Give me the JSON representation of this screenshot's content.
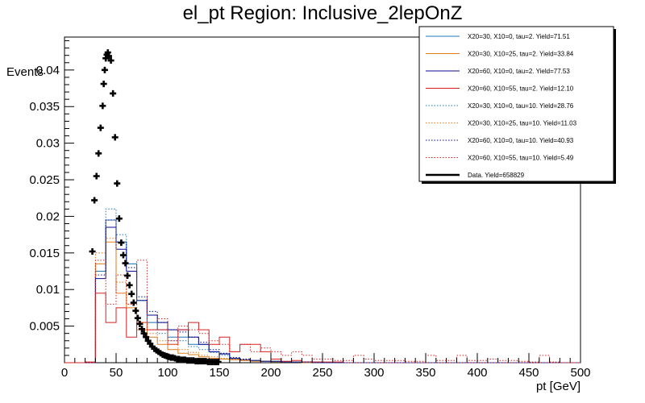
{
  "chart_data": {
    "type": "line",
    "title": "el_pt Region: Inclusive_2lepOnZ",
    "xlabel": "pt [GeV]",
    "ylabel": "Events",
    "xlim": [
      0,
      500
    ],
    "ylim": [
      0,
      0.0445
    ],
    "grid": false,
    "legend_position": "top-right",
    "x_ticks": [
      "0",
      "50",
      "100",
      "150",
      "200",
      "250",
      "300",
      "350",
      "400",
      "450",
      "500"
    ],
    "y_ticks": [
      "0.005",
      "0.01",
      "0.015",
      "0.02",
      "0.025",
      "0.03",
      "0.035",
      "0.04"
    ],
    "x_tick_values": [
      0,
      50,
      100,
      150,
      200,
      250,
      300,
      350,
      400,
      450,
      500
    ],
    "y_tick_values": [
      0.005,
      0.01,
      0.015,
      0.02,
      0.025,
      0.03,
      0.035,
      0.04
    ],
    "bin_edges": [
      0,
      10,
      20,
      30,
      40,
      50,
      60,
      70,
      80,
      90,
      100,
      110,
      120,
      130,
      140,
      150,
      160,
      170,
      180,
      190,
      200,
      210,
      220,
      230,
      240,
      250,
      260,
      270,
      280,
      290,
      300,
      310,
      320,
      330,
      340,
      350,
      360,
      370,
      380,
      390,
      400,
      410,
      420,
      430,
      440,
      450,
      460,
      470,
      480,
      490,
      500
    ],
    "series": [
      {
        "name": "X20=30, X10=0, tau=2. Yield=71.51",
        "color": "#1f77b4",
        "dash": "solid",
        "values": [
          0,
          0,
          0,
          0.0125,
          0.0195,
          0.0165,
          0.0135,
          0.0085,
          0.0055,
          0.0045,
          0.0035,
          0.0035,
          0.0025,
          0.0025,
          0.0015,
          0.0012,
          0.0006,
          0.0004,
          0.0003,
          0.0002,
          0.0002,
          0.0001,
          0.0001,
          0.0001,
          0.0001,
          0,
          0,
          0,
          0,
          0,
          0,
          0,
          0,
          0,
          0,
          0,
          0,
          0,
          0,
          0,
          0,
          0,
          0,
          0,
          0,
          0,
          0,
          0,
          0,
          0
        ]
      },
      {
        "name": "X20=30, X10=25, tau=2. Yield=33.84",
        "color": "#e07b1a",
        "dash": "solid",
        "values": [
          0,
          0,
          0,
          0.0135,
          0.0165,
          0.0095,
          0.0075,
          0.0045,
          0.0035,
          0.0025,
          0.0018,
          0.0013,
          0.0011,
          0.0008,
          0.0006,
          0.0005,
          0.0004,
          0.0003,
          0.0002,
          0.0002,
          0.0001,
          0.0001,
          0.0001,
          0,
          0,
          0,
          0,
          0,
          0,
          0,
          0,
          0,
          0,
          0,
          0,
          0,
          0,
          0,
          0,
          0,
          0,
          0,
          0,
          0,
          0,
          0,
          0,
          0,
          0,
          0
        ]
      },
      {
        "name": "X20=60, X10=0, tau=2. Yield=77.53",
        "color": "#0a0a8c",
        "dash": "solid",
        "values": [
          0,
          0,
          0,
          0.0115,
          0.0185,
          0.0155,
          0.0125,
          0.0085,
          0.0065,
          0.0055,
          0.0045,
          0.0045,
          0.0035,
          0.0025,
          0.0015,
          0.0012,
          0.0006,
          0.0004,
          0.0003,
          0.0002,
          0.0002,
          0.0001,
          0.0001,
          0.0001,
          0,
          0,
          0,
          0,
          0,
          0,
          0,
          0,
          0,
          0,
          0,
          0,
          0,
          0,
          0,
          0,
          0,
          0,
          0,
          0,
          0,
          0,
          0,
          0,
          0,
          0
        ]
      },
      {
        "name": "X20=60, X10=55, tau=2. Yield=12.10",
        "color": "#d62020",
        "dash": "solid",
        "values": [
          0,
          0,
          0.0001,
          0.0095,
          0.0055,
          0.0075,
          0.0035,
          0.0055,
          0.0045,
          0.0045,
          0.0025,
          0.0045,
          0.0055,
          0.0045,
          0.0025,
          0.0035,
          0.0015,
          0.0025,
          0.0025,
          0.0015,
          0.0005,
          0.0002,
          0.0003,
          0.0001,
          0.0001,
          0.0001,
          0.0001,
          0,
          0,
          0,
          0,
          0,
          0,
          0,
          0,
          0,
          0,
          0,
          0,
          0,
          0,
          0,
          0,
          0,
          0,
          0,
          0,
          0,
          0,
          0
        ]
      },
      {
        "name": "X20=30, X10=0, tau=10. Yield=28.76",
        "color": "#1f77b4",
        "dash": "dotted",
        "values": [
          0,
          0,
          0,
          0.0125,
          0.021,
          0.0175,
          0.0135,
          0.0085,
          0.0055,
          0.004,
          0.003,
          0.003,
          0.0022,
          0.0018,
          0.0014,
          0.001,
          0.0005,
          0.0004,
          0.0003,
          0.0002,
          0.0001,
          0.0001,
          0.0001,
          0,
          0,
          0,
          0,
          0,
          0,
          0,
          0,
          0,
          0,
          0,
          0,
          0,
          0,
          0,
          0,
          0,
          0,
          0,
          0,
          0,
          0,
          0,
          0,
          0,
          0,
          0
        ]
      },
      {
        "name": "X20=30, X10=25, tau=10. Yield=11.03",
        "color": "#e07b1a",
        "dash": "dotted",
        "values": [
          0,
          0,
          0,
          0.015,
          0.017,
          0.011,
          0.008,
          0.0055,
          0.004,
          0.003,
          0.0025,
          0.0018,
          0.0014,
          0.001,
          0.0008,
          0.0006,
          0.0005,
          0.0004,
          0.0003,
          0.0002,
          0.0002,
          0.0001,
          0.0001,
          0,
          0,
          0,
          0,
          0,
          0,
          0,
          0,
          0,
          0,
          0,
          0,
          0,
          0,
          0,
          0,
          0,
          0,
          0,
          0,
          0,
          0,
          0,
          0,
          0,
          0,
          0
        ]
      },
      {
        "name": "X20=60, X10=0, tau=10. Yield=40.93",
        "color": "#0a0a8c",
        "dash": "dotted",
        "values": [
          0,
          0,
          0,
          0.012,
          0.0195,
          0.0165,
          0.013,
          0.009,
          0.007,
          0.0055,
          0.0045,
          0.0042,
          0.0035,
          0.0028,
          0.0018,
          0.0013,
          0.0007,
          0.0005,
          0.0003,
          0.0002,
          0.0002,
          0.0001,
          0.0001,
          0.0001,
          0,
          0,
          0,
          0,
          0,
          0,
          0,
          0,
          0,
          0,
          0,
          0,
          0,
          0,
          0,
          0,
          0,
          0,
          0,
          0,
          0,
          0,
          0,
          0,
          0,
          0
        ]
      },
      {
        "name": "X20=60, X10=55, tau=10. Yield=5.49",
        "color": "#d62020",
        "dash": "dotted",
        "values": [
          0,
          0,
          0,
          0.014,
          0.008,
          0.012,
          0.008,
          0.014,
          0.0045,
          0.006,
          0.003,
          0.005,
          0.0045,
          0.004,
          0.003,
          0.0025,
          0.0015,
          0.0025,
          0.0015,
          0.002,
          0.0015,
          0.001,
          0.0015,
          0.001,
          0.0005,
          0.0005,
          0.0003,
          0.0003,
          0.001,
          0.0005,
          0.0003,
          0.0003,
          0.0003,
          0.0002,
          0.0002,
          0.001,
          0.0003,
          0.0003,
          0.001,
          0.0003,
          0.0003,
          0.0005,
          0.0003,
          0.0003,
          0.0002,
          0.0001,
          0.001,
          0.0001,
          0,
          0
        ]
      }
    ],
    "data_series": {
      "name": "Data. Yield=658829",
      "color": "#000000",
      "x": [
        27,
        29,
        31,
        33,
        35,
        37,
        38,
        39,
        40,
        41,
        42,
        43,
        45,
        47,
        49,
        51,
        53,
        55,
        57,
        59,
        61,
        63,
        65,
        67,
        69,
        71,
        73,
        75,
        77,
        79,
        81,
        83,
        85,
        87,
        89,
        91,
        93,
        95,
        97,
        99,
        101,
        103,
        105,
        107,
        109,
        111,
        113,
        115,
        117,
        119,
        121,
        123,
        125,
        127,
        129,
        131,
        133,
        135,
        137,
        139,
        141,
        143,
        145,
        147,
        149
      ],
      "y": [
        0.0152,
        0.0222,
        0.0255,
        0.0286,
        0.0321,
        0.0351,
        0.0381,
        0.04,
        0.0416,
        0.0421,
        0.0424,
        0.0419,
        0.0413,
        0.0368,
        0.0308,
        0.0245,
        0.0197,
        0.0164,
        0.0147,
        0.0136,
        0.0119,
        0.0106,
        0.0094,
        0.0082,
        0.0071,
        0.0061,
        0.0053,
        0.0046,
        0.004,
        0.0035,
        0.003,
        0.0026,
        0.0022,
        0.0019,
        0.0017,
        0.0015,
        0.0013,
        0.0011,
        0.001,
        0.0009,
        0.0008,
        0.0007,
        0.0007,
        0.0006,
        0.0005,
        0.0005,
        0.0004,
        0.0004,
        0.0004,
        0.0003,
        0.0003,
        0.0003,
        0.0003,
        0.0002,
        0.0002,
        0.0002,
        0.0002,
        0.0002,
        0.0002,
        0.0001,
        0.0001,
        0.0001,
        0.0001,
        0.0001,
        0.0001
      ]
    }
  }
}
